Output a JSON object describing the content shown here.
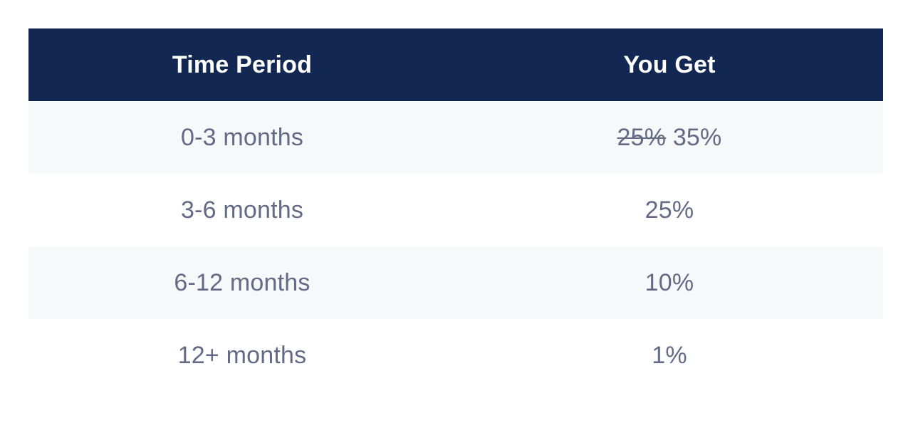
{
  "table": {
    "headers": [
      "Time Period",
      "You Get"
    ],
    "rows": [
      {
        "period": "0-3 months",
        "old_value": "25%",
        "value": "35%"
      },
      {
        "period": "3-6 months",
        "value": "25%"
      },
      {
        "period": "6-12 months",
        "value": "10%"
      },
      {
        "period": "12+ months",
        "value": "1%"
      }
    ]
  },
  "colors": {
    "header_bg": "#122853",
    "header_text": "#ffffff",
    "body_text": "#626a85",
    "stripe_bg": "#f7f8fa"
  }
}
